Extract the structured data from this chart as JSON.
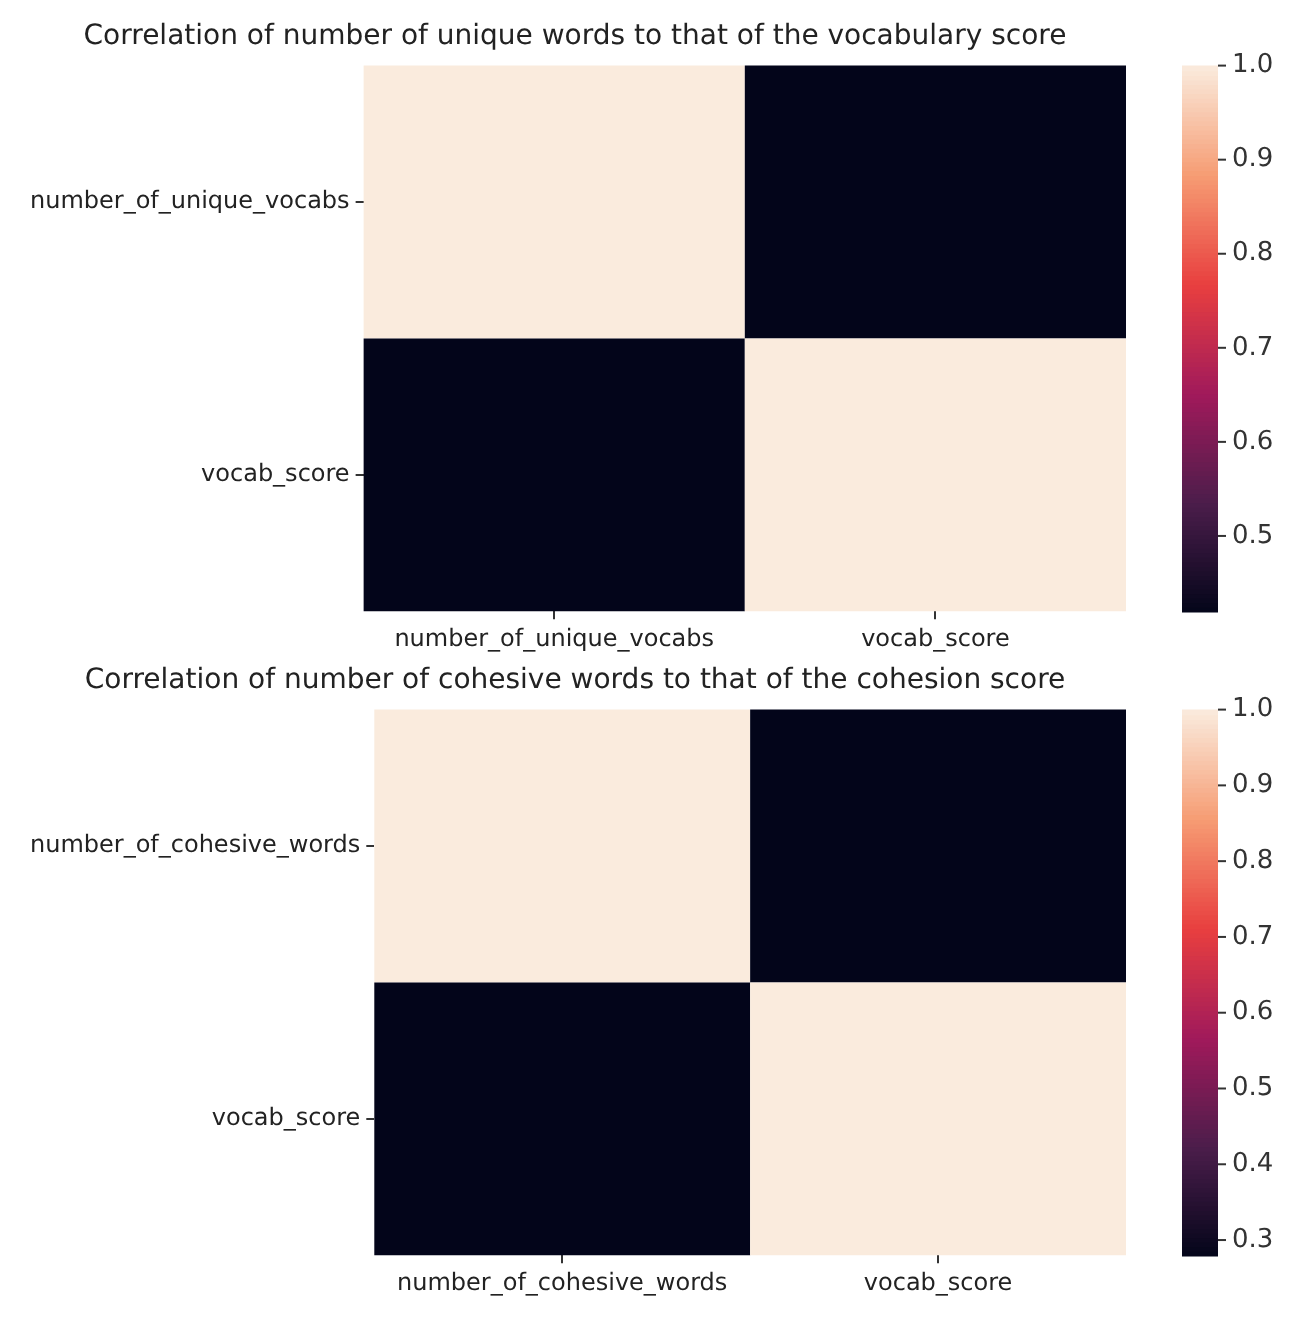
{
  "chart_data": [
    {
      "type": "heatmap",
      "title": "Correlation of number of unique words to that of the vocabulary score",
      "categories": [
        "number_of_unique_vocabs",
        "vocab_score"
      ],
      "y_categories": [
        "number_of_unique_vocabs",
        "vocab_score"
      ],
      "cells": [
        [
          1.0,
          0.42
        ],
        [
          0.42,
          1.0
        ]
      ],
      "clim": [
        0.42,
        1.0
      ],
      "cticks": [
        0.5,
        0.6,
        0.7,
        0.8,
        0.9,
        {
          "value": 1.0,
          "label": "1.0"
        }
      ]
    },
    {
      "type": "heatmap",
      "title": "Correlation of number of cohesive words to that of the cohesion score",
      "categories": [
        "number_of_cohesive_words",
        "vocab_score"
      ],
      "y_categories": [
        "number_of_cohesive_words",
        "vocab_score"
      ],
      "cells": [
        [
          1.0,
          0.28
        ],
        [
          0.28,
          1.0
        ]
      ],
      "clim": [
        0.28,
        1.0
      ],
      "cticks": [
        0.3,
        0.4,
        0.5,
        0.6,
        0.7,
        0.8,
        0.9,
        {
          "value": 1.0,
          "label": "1.0"
        }
      ]
    }
  ]
}
